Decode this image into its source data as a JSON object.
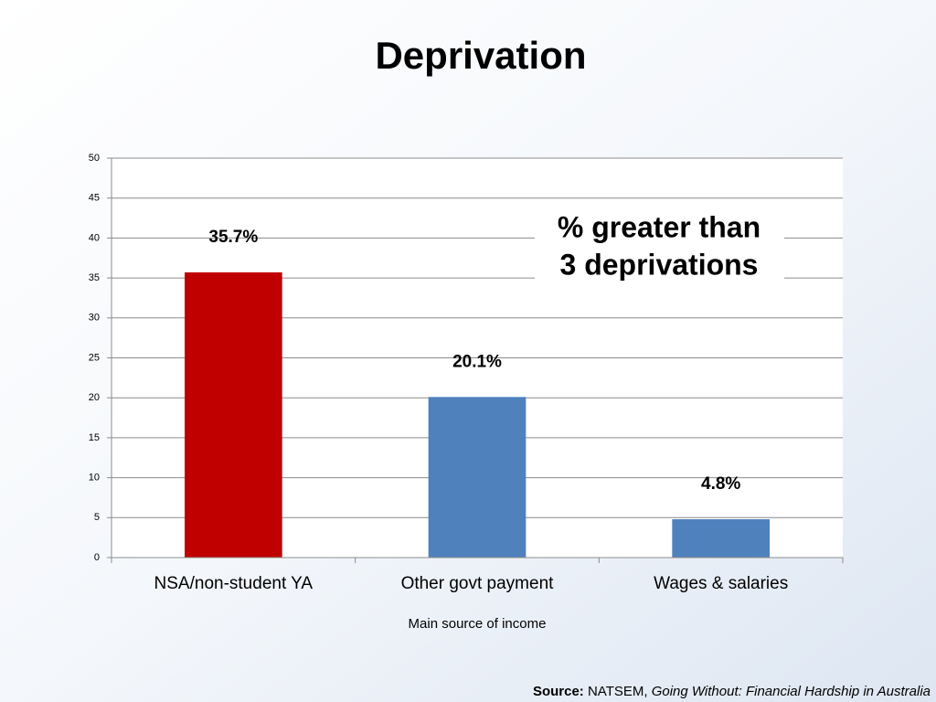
{
  "chart_data": {
    "type": "bar",
    "title": "Deprivation",
    "categories": [
      "NSA/non-student YA",
      "Other govt payment",
      "Wages & salaries"
    ],
    "values": [
      35.7,
      20.1,
      4.8
    ],
    "value_labels": [
      "35.7%",
      "20.1%",
      "4.8%"
    ],
    "colors": [
      "#c00000",
      "#4f81bd",
      "#4f81bd"
    ],
    "ylim": [
      0,
      50
    ],
    "yticks": [
      0,
      5,
      10,
      15,
      20,
      25,
      30,
      35,
      40,
      45,
      50
    ],
    "grid": true,
    "xlabel": "Main source of income",
    "annotation": [
      "% greater than",
      "3 deprivations"
    ],
    "source": {
      "label": "Source:",
      "author": "NATSEM,",
      "title": "Going Without: Financial Hardship in Australia"
    }
  }
}
